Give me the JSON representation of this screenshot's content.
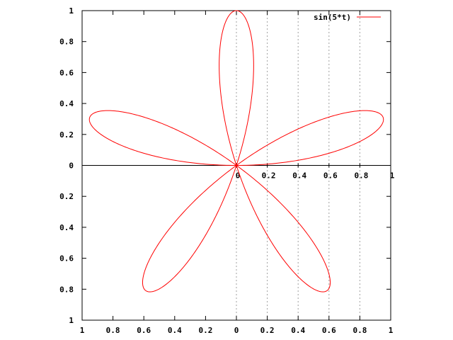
{
  "chart_data": {
    "type": "line",
    "subtype": "polar",
    "title": "",
    "xlabel": "",
    "ylabel": "",
    "xlim": [
      -1,
      1
    ],
    "ylim": [
      -1,
      1
    ],
    "grid": "polar radial dashed lines along x axis",
    "legend_position": "top-right",
    "series": [
      {
        "name": "sin(5*t)",
        "color": "#ff0000",
        "r_expression": "sin(5*t)",
        "t_range": [
          0,
          6.283185
        ],
        "x": [
          0,
          0.13,
          0.3,
          0.53,
          0.79,
          0.95,
          0.79,
          0.53,
          0.3,
          0.13,
          0,
          -0.13,
          -0.3,
          -0.53,
          -0.79,
          -0.95,
          -0.79,
          -0.53,
          -0.3,
          -0.13,
          0
        ],
        "y": [
          0,
          0.09,
          0.16,
          0.25,
          0.33,
          0.3,
          0.33,
          0.25,
          0.16,
          0.09,
          0,
          0.09,
          0.16,
          0.25,
          0.33,
          0.3,
          0.33,
          0.25,
          0.16,
          0.09,
          0
        ]
      }
    ]
  },
  "axes": {
    "left_ticks": [
      "1",
      "0.8",
      "0.6",
      "0.4",
      "0.2",
      "0",
      "0.2",
      "0.4",
      "0.6",
      "0.8",
      "1"
    ],
    "bottom_ticks": [
      "1",
      "0.8",
      "0.6",
      "0.4",
      "0.2",
      "0",
      "0.2",
      "0.4",
      "0.6",
      "0.8",
      "1"
    ],
    "inner_ticks": [
      "0",
      "0.2",
      "0.4",
      "0.6",
      "0.8",
      "1"
    ]
  }
}
